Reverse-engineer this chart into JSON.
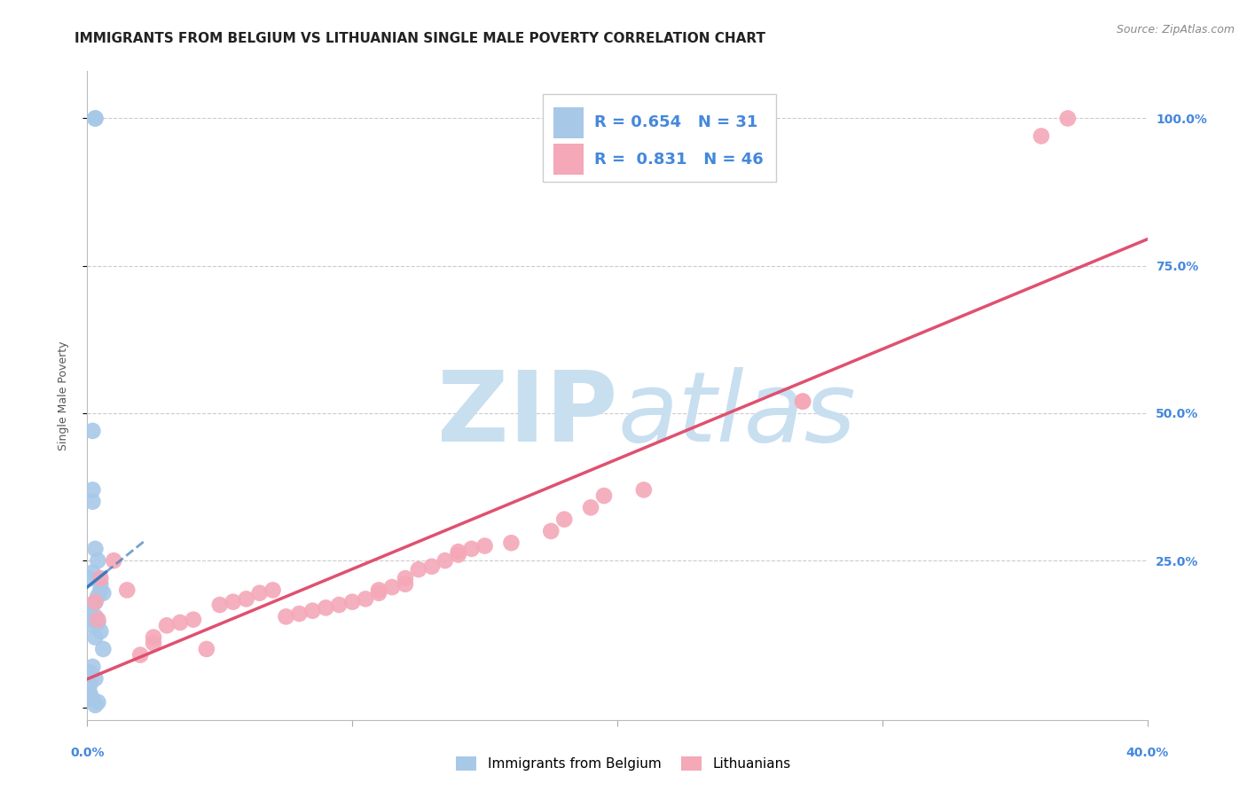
{
  "title": "IMMIGRANTS FROM BELGIUM VS LITHUANIAN SINGLE MALE POVERTY CORRELATION CHART",
  "source": "Source: ZipAtlas.com",
  "ylabel": "Single Male Poverty",
  "xlim": [
    0.0,
    0.4
  ],
  "ylim": [
    -0.02,
    1.08
  ],
  "yticks": [
    0.0,
    0.25,
    0.5,
    0.75,
    1.0
  ],
  "ytick_labels": [
    "",
    "25.0%",
    "50.0%",
    "75.0%",
    "100.0%"
  ],
  "xticks": [
    0.0,
    0.1,
    0.2,
    0.3,
    0.4
  ],
  "xtick_labels_show": [
    "0.0%",
    "",
    "",
    "",
    "40.0%"
  ],
  "belgium_R": 0.654,
  "belgium_N": 31,
  "lithuanian_R": 0.831,
  "lithuanian_N": 46,
  "belgium_color": "#a8c8e8",
  "lithuanian_color": "#f4a8b8",
  "belgium_line_color": "#3a7abd",
  "lithuanian_line_color": "#e05070",
  "belgium_line_style": "--",
  "lithuanian_line_style": "-",
  "belgium_points_x": [
    0.003,
    0.003,
    0.002,
    0.002,
    0.002,
    0.003,
    0.004,
    0.002,
    0.001,
    0.005,
    0.005,
    0.006,
    0.004,
    0.003,
    0.002,
    0.001,
    0.003,
    0.002,
    0.004,
    0.002,
    0.005,
    0.003,
    0.006,
    0.002,
    0.001,
    0.003,
    0.001,
    0.001,
    0.002,
    0.004,
    0.003
  ],
  "belgium_points_y": [
    1.0,
    1.0,
    0.47,
    0.37,
    0.35,
    0.27,
    0.25,
    0.23,
    0.22,
    0.21,
    0.2,
    0.195,
    0.19,
    0.18,
    0.175,
    0.16,
    0.155,
    0.15,
    0.145,
    0.14,
    0.13,
    0.12,
    0.1,
    0.07,
    0.06,
    0.05,
    0.04,
    0.025,
    0.015,
    0.01,
    0.005
  ],
  "lithuanian_points_x": [
    0.37,
    0.36,
    0.27,
    0.27,
    0.21,
    0.195,
    0.19,
    0.18,
    0.175,
    0.16,
    0.15,
    0.145,
    0.14,
    0.14,
    0.135,
    0.13,
    0.125,
    0.12,
    0.12,
    0.115,
    0.11,
    0.11,
    0.105,
    0.1,
    0.095,
    0.09,
    0.085,
    0.08,
    0.075,
    0.07,
    0.065,
    0.06,
    0.055,
    0.05,
    0.045,
    0.04,
    0.035,
    0.03,
    0.025,
    0.025,
    0.02,
    0.015,
    0.01,
    0.005,
    0.004,
    0.003
  ],
  "lithuanian_points_y": [
    1.0,
    0.97,
    0.52,
    0.52,
    0.37,
    0.36,
    0.34,
    0.32,
    0.3,
    0.28,
    0.275,
    0.27,
    0.265,
    0.26,
    0.25,
    0.24,
    0.235,
    0.22,
    0.21,
    0.205,
    0.2,
    0.195,
    0.185,
    0.18,
    0.175,
    0.17,
    0.165,
    0.16,
    0.155,
    0.2,
    0.195,
    0.185,
    0.18,
    0.175,
    0.1,
    0.15,
    0.145,
    0.14,
    0.12,
    0.11,
    0.09,
    0.2,
    0.25,
    0.22,
    0.15,
    0.18
  ],
  "background_color": "#ffffff",
  "grid_color": "#cccccc",
  "title_fontsize": 11,
  "axis_label_fontsize": 9,
  "tick_fontsize": 10,
  "legend_fontsize": 13,
  "source_fontsize": 9,
  "watermark_zip_color": "#c8dff0",
  "watermark_atlas_color": "#c8dff0",
  "right_tick_color": "#4488dd"
}
